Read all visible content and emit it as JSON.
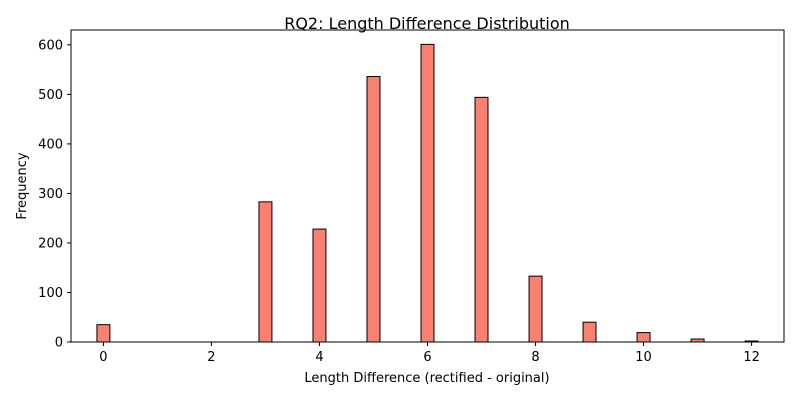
{
  "chart_data": {
    "type": "bar",
    "title": "RQ2: Length Difference Distribution",
    "xlabel": "Length Difference (rectified - original)",
    "ylabel": "Frequency",
    "xlim": [
      -0.6,
      12.6
    ],
    "ylim": [
      0,
      630
    ],
    "x_ticks": [
      0,
      2,
      4,
      6,
      8,
      10,
      12
    ],
    "y_ticks": [
      0,
      100,
      200,
      300,
      400,
      500,
      600
    ],
    "bar_width": 0.24,
    "bar_color": "#fa8072",
    "edge_color": "#000000",
    "grid": false,
    "series": [
      {
        "x": [
          0,
          1,
          2,
          3,
          4,
          5,
          6,
          7,
          8,
          9,
          10,
          11,
          12
        ],
        "values": [
          35,
          0,
          0,
          283,
          228,
          536,
          601,
          494,
          133,
          40,
          19,
          6,
          2
        ]
      }
    ]
  }
}
